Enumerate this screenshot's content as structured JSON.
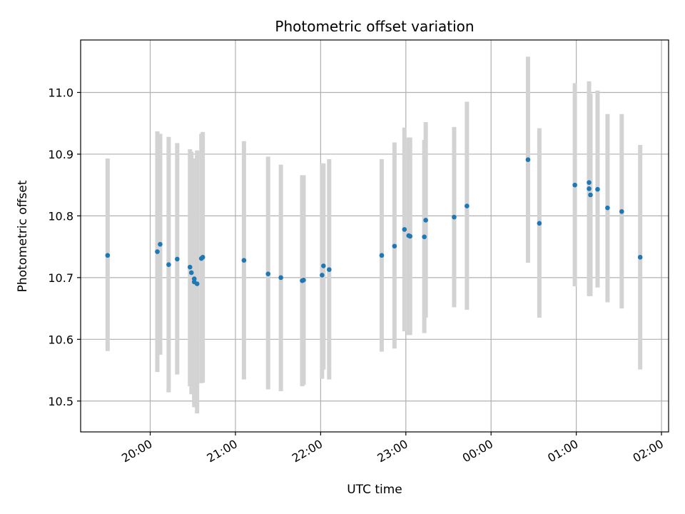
{
  "chart_data": {
    "type": "scatter",
    "title": "Photometric offset variation",
    "xlabel": "UTC time",
    "ylabel": "Photometric offset",
    "x_ticks": [
      "20:00",
      "21:00",
      "22:00",
      "23:00",
      "00:00",
      "01:00",
      "02:00"
    ],
    "x_tick_hours": [
      20,
      21,
      22,
      23,
      24,
      25,
      26
    ],
    "y_ticks": [
      "10.5",
      "10.6",
      "10.7",
      "10.8",
      "10.9",
      "11.0"
    ],
    "y_tick_values": [
      10.5,
      10.6,
      10.7,
      10.8,
      10.9,
      11.0
    ],
    "xlim": [
      "19:11",
      "02:05"
    ],
    "ylim": [
      10.45,
      11.085
    ],
    "grid": true,
    "colors": {
      "point": "#1f77b4",
      "errorbar": "#d3d3d3",
      "grid": "#b0b0b0"
    },
    "series": [
      {
        "points": [
          {
            "x": "19:30",
            "y": 10.736,
            "err_low": 10.581,
            "err_high": 10.893
          },
          {
            "x": "20:05",
            "y": 10.742,
            "err_low": 10.547,
            "err_high": 10.937
          },
          {
            "x": "20:07",
            "y": 10.754,
            "err_low": 10.575,
            "err_high": 10.933
          },
          {
            "x": "20:13",
            "y": 10.721,
            "err_low": 10.514,
            "err_high": 10.928
          },
          {
            "x": "20:19",
            "y": 10.73,
            "err_low": 10.543,
            "err_high": 10.918
          },
          {
            "x": "20:28",
            "y": 10.717,
            "err_low": 10.524,
            "err_high": 10.908
          },
          {
            "x": "20:29",
            "y": 10.708,
            "err_low": 10.511,
            "err_high": 10.904
          },
          {
            "x": "20:31",
            "y": 10.693,
            "err_low": 10.5,
            "err_high": 10.884
          },
          {
            "x": "20:31",
            "y": 10.698,
            "err_low": 10.49,
            "err_high": 10.893
          },
          {
            "x": "20:33",
            "y": 10.69,
            "err_low": 10.48,
            "err_high": 10.906
          },
          {
            "x": "20:36",
            "y": 10.731,
            "err_low": 10.529,
            "err_high": 10.933
          },
          {
            "x": "20:37",
            "y": 10.733,
            "err_low": 10.53,
            "err_high": 10.936
          },
          {
            "x": "21:06",
            "y": 10.728,
            "err_low": 10.535,
            "err_high": 10.921
          },
          {
            "x": "21:23",
            "y": 10.706,
            "err_low": 10.519,
            "err_high": 10.896
          },
          {
            "x": "21:32",
            "y": 10.7,
            "err_low": 10.516,
            "err_high": 10.883
          },
          {
            "x": "21:47",
            "y": 10.695,
            "err_low": 10.524,
            "err_high": 10.866
          },
          {
            "x": "21:48",
            "y": 10.696,
            "err_low": 10.526,
            "err_high": 10.866
          },
          {
            "x": "22:01",
            "y": 10.704,
            "err_low": 10.536,
            "err_high": 10.885
          },
          {
            "x": "22:02",
            "y": 10.719,
            "err_low": 10.551,
            "err_high": 10.885
          },
          {
            "x": "22:06",
            "y": 10.713,
            "err_low": 10.535,
            "err_high": 10.892
          },
          {
            "x": "22:43",
            "y": 10.736,
            "err_low": 10.58,
            "err_high": 10.892
          },
          {
            "x": "22:52",
            "y": 10.751,
            "err_low": 10.585,
            "err_high": 10.919
          },
          {
            "x": "22:59",
            "y": 10.778,
            "err_low": 10.613,
            "err_high": 10.943
          },
          {
            "x": "23:02",
            "y": 10.768,
            "err_low": 10.607,
            "err_high": 10.927
          },
          {
            "x": "23:03",
            "y": 10.767,
            "err_low": 10.607,
            "err_high": 10.927
          },
          {
            "x": "23:13",
            "y": 10.766,
            "err_low": 10.61,
            "err_high": 10.923
          },
          {
            "x": "23:14",
            "y": 10.793,
            "err_low": 10.635,
            "err_high": 10.952
          },
          {
            "x": "23:34",
            "y": 10.798,
            "err_low": 10.652,
            "err_high": 10.944
          },
          {
            "x": "23:43",
            "y": 10.816,
            "err_low": 10.648,
            "err_high": 10.985
          },
          {
            "x": "00:26",
            "y": 10.891,
            "err_low": 10.724,
            "err_high": 11.058
          },
          {
            "x": "00:34",
            "y": 10.788,
            "err_low": 10.635,
            "err_high": 10.942
          },
          {
            "x": "00:59",
            "y": 10.85,
            "err_low": 10.686,
            "err_high": 11.015
          },
          {
            "x": "01:09",
            "y": 10.854,
            "err_low": 10.69,
            "err_high": 11.018
          },
          {
            "x": "01:09",
            "y": 10.844,
            "err_low": 10.67,
            "err_high": 11.0
          },
          {
            "x": "01:10",
            "y": 10.834,
            "err_low": 10.67,
            "err_high": 10.998
          },
          {
            "x": "01:15",
            "y": 10.843,
            "err_low": 10.684,
            "err_high": 11.003
          },
          {
            "x": "01:22",
            "y": 10.813,
            "err_low": 10.66,
            "err_high": 10.965
          },
          {
            "x": "01:32",
            "y": 10.807,
            "err_low": 10.65,
            "err_high": 10.965
          },
          {
            "x": "01:45",
            "y": 10.733,
            "err_low": 10.551,
            "err_high": 10.915
          }
        ]
      }
    ]
  }
}
